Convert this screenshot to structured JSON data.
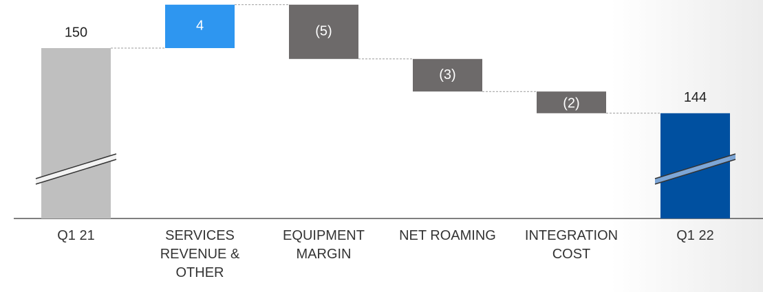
{
  "chart_data": {
    "type": "waterfall",
    "categories": [
      "Q1 21",
      "SERVICES REVENUE & OTHER",
      "EQUIPMENT MARGIN",
      "NET ROAMING",
      "INTEGRATION COST",
      "Q1 22"
    ],
    "values": [
      150,
      4,
      -5,
      -3,
      -2,
      144
    ],
    "value_labels": [
      "150",
      "4",
      "(5)",
      "(3)",
      "(2)",
      "144"
    ],
    "colors": [
      "#bfbfbf",
      "#2e96f0",
      "#6d6a6a",
      "#6d6a6a",
      "#6d6a6a",
      "#0050a0"
    ]
  }
}
